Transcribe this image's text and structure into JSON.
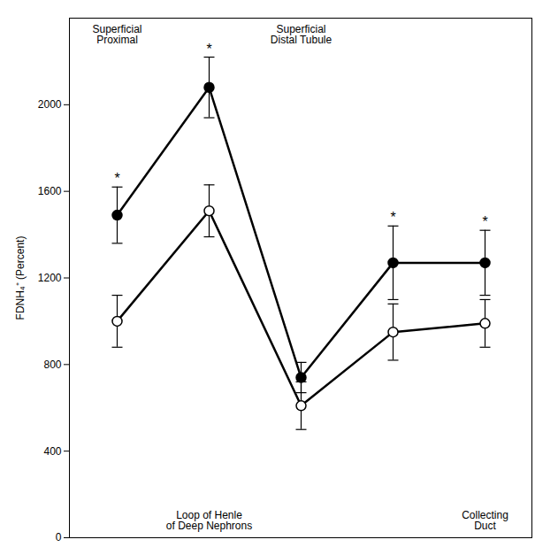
{
  "chart_data": {
    "type": "line",
    "categories": [
      "Superficial Proximal",
      "Loop of Henle of Deep Nephrons",
      "Superficial Distal Tubule",
      null,
      "Collecting Duct"
    ],
    "y_label": "FDNH₄⁺ (Percent)",
    "ylim": [
      0,
      2400
    ],
    "yticks": [
      0,
      400,
      800,
      1200,
      1600,
      2000
    ],
    "tick_labels": "y",
    "series": [
      {
        "color": "#000000",
        "marker": "filled circle",
        "values": [
          1490,
          2080,
          740,
          1270,
          1270
        ],
        "errors": [
          130,
          140,
          70,
          170,
          150
        ],
        "point_labels": [
          "*",
          "*",
          null,
          "*",
          "*"
        ]
      },
      {
        "color": "#000000",
        "marker": "open circle",
        "values": [
          1000,
          1510,
          610,
          950,
          990
        ],
        "errors": [
          120,
          120,
          110,
          130,
          110
        ]
      }
    ]
  }
}
